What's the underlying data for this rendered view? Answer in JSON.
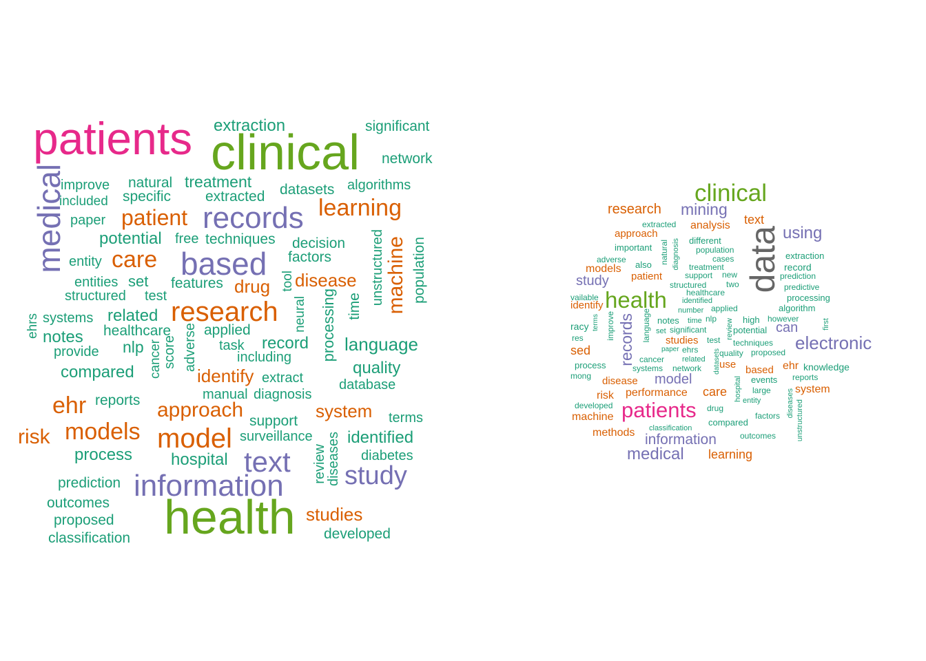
{
  "palette": {
    "teal": "#1b9e77",
    "orange": "#d95f02",
    "purple": "#7570b3",
    "pink": "#e7298a",
    "green": "#66a61e",
    "gray": "#666666"
  },
  "clouds": [
    {
      "words": [
        {
          "t": "patients",
          "c": "pink"
        },
        {
          "t": "clinical",
          "c": "green"
        },
        {
          "t": "health",
          "c": "green"
        },
        {
          "t": "medical",
          "c": "purple"
        },
        {
          "t": "records",
          "c": "purple"
        },
        {
          "t": "based",
          "c": "purple"
        },
        {
          "t": "information",
          "c": "purple"
        },
        {
          "t": "research",
          "c": "orange"
        },
        {
          "t": "text",
          "c": "purple"
        },
        {
          "t": "study",
          "c": "purple"
        },
        {
          "t": "model",
          "c": "orange"
        },
        {
          "t": "models",
          "c": "orange"
        },
        {
          "t": "care",
          "c": "orange"
        },
        {
          "t": "patient",
          "c": "orange"
        },
        {
          "t": "learning",
          "c": "orange"
        },
        {
          "t": "machine",
          "c": "orange"
        },
        {
          "t": "ehr",
          "c": "orange"
        },
        {
          "t": "risk",
          "c": "orange"
        },
        {
          "t": "approach",
          "c": "orange"
        },
        {
          "t": "system",
          "c": "orange"
        },
        {
          "t": "studies",
          "c": "orange"
        },
        {
          "t": "disease",
          "c": "orange"
        },
        {
          "t": "drug",
          "c": "orange"
        },
        {
          "t": "identify",
          "c": "orange"
        },
        {
          "t": "extraction",
          "c": "teal"
        },
        {
          "t": "significant",
          "c": "teal"
        },
        {
          "t": "network",
          "c": "teal"
        },
        {
          "t": "algorithms",
          "c": "teal"
        },
        {
          "t": "datasets",
          "c": "teal"
        },
        {
          "t": "improve",
          "c": "teal"
        },
        {
          "t": "natural",
          "c": "teal"
        },
        {
          "t": "treatment",
          "c": "teal"
        },
        {
          "t": "included",
          "c": "teal"
        },
        {
          "t": "specific",
          "c": "teal"
        },
        {
          "t": "extracted",
          "c": "teal"
        },
        {
          "t": "paper",
          "c": "teal"
        },
        {
          "t": "potential",
          "c": "teal"
        },
        {
          "t": "free",
          "c": "teal"
        },
        {
          "t": "techniques",
          "c": "teal"
        },
        {
          "t": "decision",
          "c": "teal"
        },
        {
          "t": "factors",
          "c": "teal"
        },
        {
          "t": "unstructured",
          "c": "teal"
        },
        {
          "t": "population",
          "c": "teal"
        },
        {
          "t": "entity",
          "c": "teal"
        },
        {
          "t": "entities",
          "c": "teal"
        },
        {
          "t": "set",
          "c": "teal"
        },
        {
          "t": "features",
          "c": "teal"
        },
        {
          "t": "tool",
          "c": "teal"
        },
        {
          "t": "structured",
          "c": "teal"
        },
        {
          "t": "test",
          "c": "teal"
        },
        {
          "t": "neural",
          "c": "teal"
        },
        {
          "t": "time",
          "c": "teal"
        },
        {
          "t": "systems",
          "c": "teal"
        },
        {
          "t": "related",
          "c": "teal"
        },
        {
          "t": "ehrs",
          "c": "teal"
        },
        {
          "t": "processing",
          "c": "teal"
        },
        {
          "t": "notes",
          "c": "teal"
        },
        {
          "t": "healthcare",
          "c": "teal"
        },
        {
          "t": "applied",
          "c": "teal"
        },
        {
          "t": "adverse",
          "c": "teal"
        },
        {
          "t": "score",
          "c": "teal"
        },
        {
          "t": "cancer",
          "c": "teal"
        },
        {
          "t": "nlp",
          "c": "teal"
        },
        {
          "t": "task",
          "c": "teal"
        },
        {
          "t": "record",
          "c": "teal"
        },
        {
          "t": "language",
          "c": "teal"
        },
        {
          "t": "provide",
          "c": "teal"
        },
        {
          "t": "including",
          "c": "teal"
        },
        {
          "t": "compared",
          "c": "teal"
        },
        {
          "t": "extract",
          "c": "teal"
        },
        {
          "t": "quality",
          "c": "teal"
        },
        {
          "t": "database",
          "c": "teal"
        },
        {
          "t": "manual",
          "c": "teal"
        },
        {
          "t": "diagnosis",
          "c": "teal"
        },
        {
          "t": "reports",
          "c": "teal"
        },
        {
          "t": "support",
          "c": "teal"
        },
        {
          "t": "terms",
          "c": "teal"
        },
        {
          "t": "surveillance",
          "c": "teal"
        },
        {
          "t": "identified",
          "c": "teal"
        },
        {
          "t": "process",
          "c": "teal"
        },
        {
          "t": "hospital",
          "c": "teal"
        },
        {
          "t": "review",
          "c": "teal"
        },
        {
          "t": "diseases",
          "c": "teal"
        },
        {
          "t": "diabetes",
          "c": "teal"
        },
        {
          "t": "prediction",
          "c": "teal"
        },
        {
          "t": "outcomes",
          "c": "teal"
        },
        {
          "t": "proposed",
          "c": "teal"
        },
        {
          "t": "classification",
          "c": "teal"
        },
        {
          "t": "developed",
          "c": "teal"
        }
      ]
    },
    {
      "words": [
        {
          "t": "data",
          "c": "gray"
        },
        {
          "t": "clinical",
          "c": "green"
        },
        {
          "t": "health",
          "c": "green"
        },
        {
          "t": "patients",
          "c": "pink"
        },
        {
          "t": "electronic",
          "c": "purple"
        },
        {
          "t": "using",
          "c": "purple"
        },
        {
          "t": "mining",
          "c": "purple"
        },
        {
          "t": "records",
          "c": "purple"
        },
        {
          "t": "medical",
          "c": "purple"
        },
        {
          "t": "information",
          "c": "purple"
        },
        {
          "t": "model",
          "c": "purple"
        },
        {
          "t": "study",
          "c": "purple"
        },
        {
          "t": "can",
          "c": "purple"
        },
        {
          "t": "research",
          "c": "orange"
        },
        {
          "t": "text",
          "c": "orange"
        },
        {
          "t": "analysis",
          "c": "orange"
        },
        {
          "t": "approach",
          "c": "orange"
        },
        {
          "t": "models",
          "c": "orange"
        },
        {
          "t": "patient",
          "c": "orange"
        },
        {
          "t": "identify",
          "c": "orange"
        },
        {
          "t": "sed",
          "c": "orange"
        },
        {
          "t": "studies",
          "c": "orange"
        },
        {
          "t": "use",
          "c": "orange"
        },
        {
          "t": "based",
          "c": "orange"
        },
        {
          "t": "ehr",
          "c": "orange"
        },
        {
          "t": "system",
          "c": "orange"
        },
        {
          "t": "disease",
          "c": "orange"
        },
        {
          "t": "performance",
          "c": "orange"
        },
        {
          "t": "care",
          "c": "orange"
        },
        {
          "t": "risk",
          "c": "orange"
        },
        {
          "t": "machine",
          "c": "orange"
        },
        {
          "t": "methods",
          "c": "orange"
        },
        {
          "t": "learning",
          "c": "orange"
        },
        {
          "t": "extracted",
          "c": "teal"
        },
        {
          "t": "different",
          "c": "teal"
        },
        {
          "t": "important",
          "c": "teal"
        },
        {
          "t": "natural",
          "c": "teal"
        },
        {
          "t": "diagnosis",
          "c": "teal"
        },
        {
          "t": "population",
          "c": "teal"
        },
        {
          "t": "adverse",
          "c": "teal"
        },
        {
          "t": "cases",
          "c": "teal"
        },
        {
          "t": "extraction",
          "c": "teal"
        },
        {
          "t": "also",
          "c": "teal"
        },
        {
          "t": "treatment",
          "c": "teal"
        },
        {
          "t": "record",
          "c": "teal"
        },
        {
          "t": "support",
          "c": "teal"
        },
        {
          "t": "new",
          "c": "teal"
        },
        {
          "t": "prediction",
          "c": "teal"
        },
        {
          "t": "structured",
          "c": "teal"
        },
        {
          "t": "two",
          "c": "teal"
        },
        {
          "t": "predictive",
          "c": "teal"
        },
        {
          "t": "vailable",
          "c": "teal"
        },
        {
          "t": "healthcare",
          "c": "teal"
        },
        {
          "t": "processing",
          "c": "teal"
        },
        {
          "t": "identified",
          "c": "teal"
        },
        {
          "t": "algorithm",
          "c": "teal"
        },
        {
          "t": "number",
          "c": "teal"
        },
        {
          "t": "applied",
          "c": "teal"
        },
        {
          "t": "terms",
          "c": "teal"
        },
        {
          "t": "improve",
          "c": "teal"
        },
        {
          "t": "language",
          "c": "teal"
        },
        {
          "t": "notes",
          "c": "teal"
        },
        {
          "t": "time",
          "c": "teal"
        },
        {
          "t": "nlp",
          "c": "teal"
        },
        {
          "t": "review",
          "c": "teal"
        },
        {
          "t": "high",
          "c": "teal"
        },
        {
          "t": "however",
          "c": "teal"
        },
        {
          "t": "racy",
          "c": "teal"
        },
        {
          "t": "set",
          "c": "teal"
        },
        {
          "t": "significant",
          "c": "teal"
        },
        {
          "t": "potential",
          "c": "teal"
        },
        {
          "t": "first",
          "c": "teal"
        },
        {
          "t": "res",
          "c": "teal"
        },
        {
          "t": "test",
          "c": "teal"
        },
        {
          "t": "techniques",
          "c": "teal"
        },
        {
          "t": "paper",
          "c": "teal"
        },
        {
          "t": "ehrs",
          "c": "teal"
        },
        {
          "t": "quality",
          "c": "teal"
        },
        {
          "t": "proposed",
          "c": "teal"
        },
        {
          "t": "cancer",
          "c": "teal"
        },
        {
          "t": "related",
          "c": "teal"
        },
        {
          "t": "datasets",
          "c": "teal"
        },
        {
          "t": "process",
          "c": "teal"
        },
        {
          "t": "systems",
          "c": "teal"
        },
        {
          "t": "network",
          "c": "teal"
        },
        {
          "t": "knowledge",
          "c": "teal"
        },
        {
          "t": "mong",
          "c": "teal"
        },
        {
          "t": "events",
          "c": "teal"
        },
        {
          "t": "reports",
          "c": "teal"
        },
        {
          "t": "hospital",
          "c": "teal"
        },
        {
          "t": "large",
          "c": "teal"
        },
        {
          "t": "developed",
          "c": "teal"
        },
        {
          "t": "entity",
          "c": "teal"
        },
        {
          "t": "drug",
          "c": "teal"
        },
        {
          "t": "factors",
          "c": "teal"
        },
        {
          "t": "diseases",
          "c": "teal"
        },
        {
          "t": "compared",
          "c": "teal"
        },
        {
          "t": "classification",
          "c": "teal"
        },
        {
          "t": "unstructured",
          "c": "teal"
        },
        {
          "t": "outcomes",
          "c": "teal"
        }
      ]
    }
  ]
}
